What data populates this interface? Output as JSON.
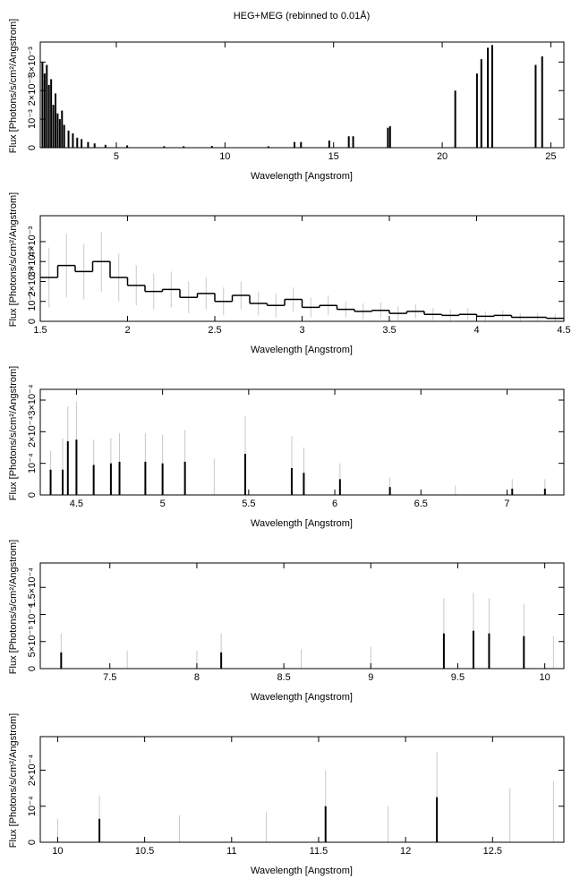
{
  "chart_data": [
    {
      "type": "spike",
      "title": "HEG+MEG (rebinned to 0.01Å)",
      "xlabel": "Wavelength [Angstrom]",
      "ylabel": "Flux [Photons/s/cm²/Angstrom]",
      "xlim": [
        1.5,
        25.6
      ],
      "xticks": [
        5,
        10,
        15,
        20,
        25
      ],
      "ylim": [
        0,
        0.0037
      ],
      "yticks": [
        0,
        {
          "value": 0.001,
          "label": "10⁻³"
        },
        {
          "value": 0.002,
          "label": "2×10⁻³"
        },
        {
          "value": 0.003,
          "label": "3×10⁻³"
        }
      ],
      "color": "#000000",
      "x": [
        1.6,
        1.7,
        1.8,
        1.9,
        2.0,
        2.1,
        2.2,
        2.3,
        2.4,
        2.5,
        2.6,
        2.8,
        3.0,
        3.2,
        3.4,
        3.7,
        4.0,
        4.5,
        5.5,
        7.2,
        8.1,
        9.4,
        12.0,
        13.2,
        13.5,
        14.8,
        15.7,
        15.9,
        17.5,
        17.6,
        20.6,
        21.6,
        21.8,
        22.1,
        22.3,
        24.3,
        24.6
      ],
      "values": [
        0.003,
        0.0026,
        0.0029,
        0.0022,
        0.0024,
        0.0015,
        0.0019,
        0.0012,
        0.001,
        0.0013,
        0.0008,
        0.0006,
        0.0005,
        0.00035,
        0.0003,
        0.0002,
        0.00015,
        0.0001,
        8e-05,
        5e-05,
        5e-05,
        6e-05,
        5e-05,
        0.0002,
        0.0002,
        0.00025,
        0.0004,
        0.0004,
        0.0007,
        0.00075,
        0.002,
        0.0026,
        0.0031,
        0.0035,
        0.0036,
        0.0029,
        0.0032
      ]
    },
    {
      "type": "step",
      "xlabel": "Wavelength [Angstrom]",
      "ylabel": "Flux [Photons/s/cm²/Angstrom]",
      "xlim": [
        1.5,
        4.5
      ],
      "xticks": [
        1.5,
        2,
        2.5,
        3,
        3.5,
        4,
        4.5
      ],
      "ylim": [
        0,
        0.0053
      ],
      "yticks": [
        0,
        {
          "value": 0.001,
          "label": "10⁻³"
        },
        {
          "value": 0.002,
          "label": "2×10⁻³"
        },
        {
          "value": 0.003,
          "label": "3×10⁻³"
        },
        {
          "value": 0.004,
          "label": "4×10⁻³"
        }
      ],
      "color": "#000000",
      "error_color": "#c8c8c8",
      "x": [
        1.55,
        1.65,
        1.75,
        1.85,
        1.95,
        2.05,
        2.15,
        2.25,
        2.35,
        2.45,
        2.55,
        2.65,
        2.75,
        2.85,
        2.95,
        3.05,
        3.15,
        3.25,
        3.35,
        3.45,
        3.55,
        3.65,
        3.75,
        3.85,
        3.95,
        4.05,
        4.15,
        4.25,
        4.35,
        4.45
      ],
      "values": [
        0.0022,
        0.0028,
        0.0025,
        0.003,
        0.0022,
        0.0018,
        0.0015,
        0.0016,
        0.0012,
        0.0014,
        0.001,
        0.0013,
        0.0009,
        0.0008,
        0.0011,
        0.0007,
        0.0008,
        0.0006,
        0.0005,
        0.00055,
        0.0004,
        0.0005,
        0.00035,
        0.0003,
        0.00035,
        0.00025,
        0.0003,
        0.0002,
        0.0002,
        0.00015
      ],
      "errors": [
        0.0015,
        0.0016,
        0.0014,
        0.0015,
        0.0012,
        0.001,
        0.0009,
        0.0009,
        0.0008,
        0.0008,
        0.0007,
        0.0007,
        0.0006,
        0.0006,
        0.0006,
        0.0005,
        0.0005,
        0.0004,
        0.0004,
        0.0004,
        0.00035,
        0.00035,
        0.0003,
        0.0003,
        0.0003,
        0.00025,
        0.00025,
        0.0002,
        0.0002,
        0.0002
      ]
    },
    {
      "type": "spike",
      "xlabel": "Wavelength [Angstrom]",
      "ylabel": "Flux [Photons/s/cm²/Angstrom]",
      "xlim": [
        4.29,
        7.33
      ],
      "xticks": [
        4.5,
        5,
        5.5,
        6,
        6.5,
        7
      ],
      "ylim": [
        0,
        0.000334
      ],
      "yticks": [
        0,
        {
          "value": 0.0001,
          "label": "10⁻⁴"
        },
        {
          "value": 0.0002,
          "label": "2×10⁻⁴"
        },
        {
          "value": 0.0003,
          "label": "3×10⁻⁴"
        }
      ],
      "color": "#000000",
      "error_color": "#c8c8c8",
      "x": [
        4.35,
        4.42,
        4.45,
        4.5,
        4.6,
        4.7,
        4.75,
        4.9,
        5.0,
        5.13,
        5.3,
        5.48,
        5.75,
        5.82,
        6.03,
        6.32,
        6.7,
        7.03,
        7.22
      ],
      "values": [
        8e-05,
        8e-05,
        0.00017,
        0.000175,
        9.5e-05,
        0.0001,
        0.000105,
        0.000105,
        0.0001,
        0.000105,
        0,
        0.00013,
        8.5e-05,
        7e-05,
        5e-05,
        2.5e-05,
        0,
        2e-05,
        2e-05
      ],
      "errors": [
        6e-05,
        0.0001,
        0.00011,
        0.00012,
        8e-05,
        8e-05,
        9e-05,
        9e-05,
        9e-05,
        0.0001,
        0.000115,
        0.00012,
        0.0001,
        8e-05,
        5e-05,
        3e-05,
        3e-05,
        3e-05,
        3e-05
      ]
    },
    {
      "type": "spike",
      "xlabel": "Wavelength [Angstrom]",
      "ylabel": "Flux [Photons/s/cm²/Angstrom]",
      "xlim": [
        7.1,
        10.11
      ],
      "xticks": [
        7.5,
        8,
        8.5,
        9,
        9.5,
        10
      ],
      "ylim": [
        0,
        0.000195
      ],
      "yticks": [
        0,
        {
          "value": 5e-05,
          "label": "5×10⁻⁵"
        },
        {
          "value": 0.0001,
          "label": "10⁻⁴"
        },
        {
          "value": 0.00015,
          "label": "1.5×10⁻⁴"
        }
      ],
      "color": "#000000",
      "error_color": "#c8c8c8",
      "x": [
        7.22,
        7.6,
        8.0,
        8.14,
        8.6,
        9.0,
        9.42,
        9.59,
        9.68,
        9.88,
        10.05
      ],
      "values": [
        3e-05,
        0,
        0,
        3e-05,
        0,
        0,
        6.5e-05,
        7e-05,
        6.5e-05,
        6e-05,
        0
      ],
      "errors": [
        3.5e-05,
        3.3e-05,
        3.3e-05,
        3.5e-05,
        3.6e-05,
        4e-05,
        6.5e-05,
        7e-05,
        6.5e-05,
        6e-05,
        6e-05
      ]
    },
    {
      "type": "spike",
      "xlabel": "Wavelength [Angstrom]",
      "ylabel": "Flux [Photons/s/cm²/Angstrom]",
      "xlim": [
        9.9,
        12.91
      ],
      "xticks": [
        10,
        10.5,
        11,
        11.5,
        12,
        12.5
      ],
      "ylim": [
        0,
        0.000293
      ],
      "yticks": [
        0,
        {
          "value": 0.0001,
          "label": "10⁻⁴"
        },
        {
          "value": 0.0002,
          "label": "2×10⁻⁴"
        }
      ],
      "color": "#000000",
      "error_color": "#c8c8c8",
      "x": [
        10.0,
        10.24,
        10.7,
        11.2,
        11.54,
        11.9,
        12.18,
        12.6,
        12.85
      ],
      "values": [
        0,
        6.5e-05,
        0,
        0,
        0.0001,
        0,
        0.000125,
        0,
        0
      ],
      "errors": [
        6.5e-05,
        6.5e-05,
        7.5e-05,
        8.5e-05,
        0.0001,
        0.0001,
        0.000125,
        0.00015,
        0.00017
      ]
    }
  ]
}
